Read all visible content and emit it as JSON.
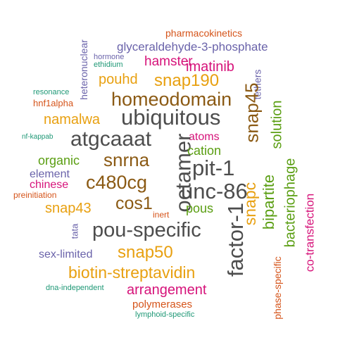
{
  "words": [
    {
      "id": "w01",
      "text": "pharmacokinetics",
      "color": "rust"
    },
    {
      "id": "w02",
      "text": "glyceraldehyde-3-phosphate",
      "color": "purple"
    },
    {
      "id": "w03",
      "text": "hormone",
      "color": "purple"
    },
    {
      "id": "w04",
      "text": "ethidium",
      "color": "teal"
    },
    {
      "id": "w05",
      "text": "heteronuclear",
      "color": "purple"
    },
    {
      "id": "w06",
      "text": "hamster",
      "color": "magenta"
    },
    {
      "id": "w07",
      "text": "imatinib",
      "color": "magenta"
    },
    {
      "id": "w08",
      "text": "pouhd",
      "color": "orange"
    },
    {
      "id": "w09",
      "text": "snap190",
      "color": "orange"
    },
    {
      "id": "w10",
      "text": "tethers",
      "color": "purple"
    },
    {
      "id": "w11",
      "text": "resonance",
      "color": "teal"
    },
    {
      "id": "w12",
      "text": "hnf1alpha",
      "color": "rust"
    },
    {
      "id": "w13",
      "text": "homeodomain",
      "color": "brown"
    },
    {
      "id": "w14",
      "text": "ubiquitous",
      "color": "grey"
    },
    {
      "id": "w15",
      "text": "namalwa",
      "color": "orange"
    },
    {
      "id": "w16",
      "text": "snap45",
      "color": "brown"
    },
    {
      "id": "w17",
      "text": "solution",
      "color": "green"
    },
    {
      "id": "w18",
      "text": "nf-kappab",
      "color": "teal"
    },
    {
      "id": "w19",
      "text": "atgcaaat",
      "color": "grey"
    },
    {
      "id": "w20",
      "text": "atoms",
      "color": "magenta"
    },
    {
      "id": "w21",
      "text": "octamer",
      "color": "grey"
    },
    {
      "id": "w22",
      "text": "organic",
      "color": "green"
    },
    {
      "id": "w23",
      "text": "snrna",
      "color": "brown"
    },
    {
      "id": "w24",
      "text": "cation",
      "color": "green"
    },
    {
      "id": "w25",
      "text": "pit-1",
      "color": "grey"
    },
    {
      "id": "w26",
      "text": "bacteriophage",
      "color": "green"
    },
    {
      "id": "w27",
      "text": "element",
      "color": "purple"
    },
    {
      "id": "w28",
      "text": "c480cg",
      "color": "brown"
    },
    {
      "id": "w29",
      "text": "chinese",
      "color": "magenta"
    },
    {
      "id": "w30",
      "text": "preinitiation",
      "color": "rust"
    },
    {
      "id": "w31",
      "text": "unc-86",
      "color": "grey"
    },
    {
      "id": "w32",
      "text": "snapc",
      "color": "orange"
    },
    {
      "id": "w33",
      "text": "bipartite",
      "color": "green"
    },
    {
      "id": "w34",
      "text": "co-transfection",
      "color": "magenta"
    },
    {
      "id": "w35",
      "text": "snap43",
      "color": "orange"
    },
    {
      "id": "w36",
      "text": "cos1",
      "color": "brown"
    },
    {
      "id": "w37",
      "text": "pous",
      "color": "green"
    },
    {
      "id": "w38",
      "text": "inert",
      "color": "rust"
    },
    {
      "id": "w39",
      "text": "factor-1",
      "color": "grey"
    },
    {
      "id": "w40",
      "text": "tata",
      "color": "purple"
    },
    {
      "id": "w41",
      "text": "pou-specific",
      "color": "grey"
    },
    {
      "id": "w42",
      "text": "sex-limited",
      "color": "purple"
    },
    {
      "id": "w43",
      "text": "snap50",
      "color": "orange"
    },
    {
      "id": "w44",
      "text": "phase-specific",
      "color": "rust"
    },
    {
      "id": "w45",
      "text": "biotin-streptavidin",
      "color": "orange"
    },
    {
      "id": "w46",
      "text": "dna-independent",
      "color": "teal"
    },
    {
      "id": "w47",
      "text": "arrangement",
      "color": "magenta"
    },
    {
      "id": "w48",
      "text": "polymerases",
      "color": "rust"
    },
    {
      "id": "w49",
      "text": "lymphoid-specific",
      "color": "teal"
    }
  ]
}
